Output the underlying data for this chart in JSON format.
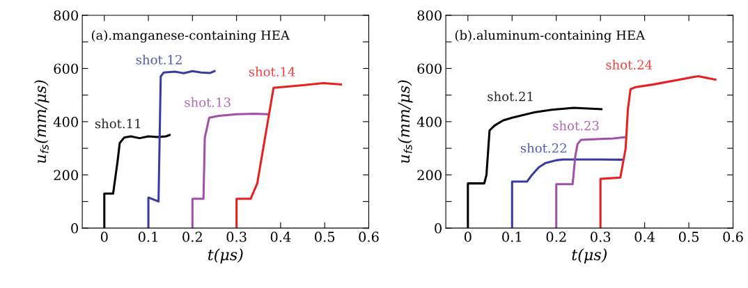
{
  "chart_data": [
    {
      "type": "line",
      "title": "(a).manganese-containing HEA",
      "xlabel": "t(μs)",
      "ylabel": "u$_{fs}$(mm/μs)",
      "xlim": [
        -0.05,
        0.6
      ],
      "xticks": [
        0,
        0.1,
        0.2,
        0.3,
        0.4,
        0.5,
        0.6
      ],
      "ylim": [
        0,
        800
      ],
      "yticks": [
        0,
        {
          "value": 100,
          "label": null
        },
        200,
        {
          "value": 300,
          "label": null
        },
        400,
        {
          "value": 500,
          "label": null
        },
        600,
        {
          "value": 700,
          "label": null
        },
        800
      ],
      "grid": false,
      "legend": false,
      "marker": "none",
      "line_style": "solid",
      "series": [
        {
          "name": "shot.11",
          "color": "#000000",
          "x": [
            0,
            0,
            0.02,
            0.03,
            0.035,
            0.045,
            0.06,
            0.08,
            0.1,
            0.12,
            0.14,
            0.148
          ],
          "values": [
            0,
            130,
            130,
            250,
            320,
            340,
            345,
            338,
            345,
            342,
            345,
            350
          ]
        },
        {
          "name": "shot.12",
          "color": "#3a3aa0",
          "x": [
            0.1,
            0.1,
            0.123,
            0.128,
            0.135,
            0.16,
            0.18,
            0.2,
            0.22,
            0.24,
            0.25
          ],
          "values": [
            0,
            115,
            100,
            570,
            585,
            588,
            582,
            590,
            585,
            583,
            590
          ]
        },
        {
          "name": "shot.13",
          "color": "#a050a8",
          "x": [
            0.2,
            0.2,
            0.225,
            0.228,
            0.238,
            0.26,
            0.3,
            0.34,
            0.37
          ],
          "values": [
            0,
            110,
            110,
            340,
            415,
            422,
            428,
            430,
            428
          ]
        },
        {
          "name": "shot.14",
          "color": "#e82020",
          "x": [
            0.3,
            0.3,
            0.332,
            0.347,
            0.384,
            0.45,
            0.497,
            0.537
          ],
          "values": [
            0,
            110,
            110,
            168,
            527,
            537,
            545,
            540
          ]
        }
      ]
    },
    {
      "type": "line",
      "title": "(b).aluminum-containing HEA",
      "xlabel": "t(μs)",
      "ylabel": "u$_{fs}$(mm/μs)",
      "xlim": [
        -0.05,
        0.6
      ],
      "xticks": [
        0,
        0.1,
        0.2,
        0.3,
        0.4,
        0.5,
        0.6
      ],
      "ylim": [
        0,
        800
      ],
      "yticks": [
        0,
        {
          "value": 100,
          "label": null
        },
        200,
        {
          "value": 300,
          "label": null
        },
        400,
        {
          "value": 500,
          "label": null
        },
        600,
        {
          "value": 700,
          "label": null
        },
        800
      ],
      "grid": false,
      "legend": false,
      "marker": "none",
      "line_style": "solid",
      "series": [
        {
          "name": "shot.21",
          "color": "#000000",
          "x": [
            0,
            0,
            0.037,
            0.042,
            0.049,
            0.06,
            0.08,
            0.1,
            0.15,
            0.19,
            0.24,
            0.302
          ],
          "values": [
            0,
            168,
            168,
            200,
            367,
            385,
            405,
            415,
            435,
            445,
            452,
            447
          ]
        },
        {
          "name": "shot.22",
          "color": "#3a3aa0",
          "x": [
            0.1,
            0.1,
            0.134,
            0.145,
            0.16,
            0.175,
            0.2,
            0.215,
            0.3,
            0.35
          ],
          "values": [
            0,
            175,
            175,
            200,
            228,
            244,
            255,
            258,
            258,
            257
          ]
        },
        {
          "name": "shot.23",
          "color": "#a050a8",
          "x": [
            0.2,
            0.2,
            0.237,
            0.243,
            0.248,
            0.256,
            0.3,
            0.33,
            0.355
          ],
          "values": [
            0,
            165,
            165,
            270,
            315,
            332,
            335,
            337,
            342
          ]
        },
        {
          "name": "shot.24",
          "color": "#e82020",
          "x": [
            0.3,
            0.3,
            0.345,
            0.357,
            0.362,
            0.368,
            0.38,
            0.42,
            0.521,
            0.56
          ],
          "values": [
            0,
            185,
            190,
            300,
            445,
            522,
            530,
            540,
            571,
            558
          ]
        }
      ]
    }
  ]
}
